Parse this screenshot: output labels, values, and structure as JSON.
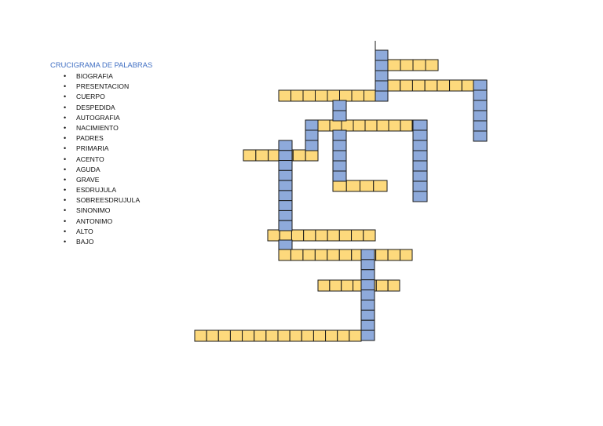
{
  "heading": "CRUCIGRAMA DE PALABRAS",
  "words": [
    "BIOGRAFIA",
    "PRESENTACION",
    "CUERPO",
    "DESPEDIDA",
    "AUTOGRAFIA",
    "NACIMIENTO",
    "PADRES",
    "PRIMARIA",
    "ACENTO",
    "AGUDA",
    "GRAVE",
    "ESDRUJULA",
    "SOBREESDRUJULA",
    "SINONIMO",
    "ANTONIMO",
    "ALTO",
    "BAJO"
  ],
  "bullet_symbol": "•",
  "colors": {
    "horizontal_cell": "#fdd97c",
    "vertical_cell": "#8eaadb",
    "cell_border": "#1a1a1a",
    "heading": "#4472c4"
  }
}
